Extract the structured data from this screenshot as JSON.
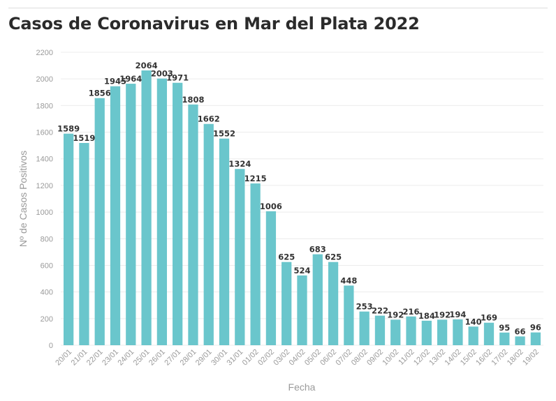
{
  "title": "Casos de Coronavirus en Mar del Plata 2022",
  "colors": {
    "bar": "#6ac6cc",
    "grid": "#ececec",
    "axis_text": "#9a9a9a",
    "label": "#333333"
  },
  "chart_data": {
    "type": "bar",
    "title": "Casos de Coronavirus en Mar del Plata 2022",
    "xlabel": "Fecha",
    "ylabel": "Nº de Casos Positivos",
    "ylim": [
      0,
      2200
    ],
    "yticks": [
      0,
      200,
      400,
      600,
      800,
      1000,
      1200,
      1400,
      1600,
      1800,
      2000,
      2200
    ],
    "grid": true,
    "categories": [
      "20/01",
      "21/01",
      "22/01",
      "23/01",
      "24/01",
      "25/01",
      "26/01",
      "27/01",
      "28/01",
      "29/01",
      "30/01",
      "31/01",
      "01/02",
      "02/02",
      "03/02",
      "04/02",
      "05/02",
      "06/02",
      "07/02",
      "08/02",
      "09/02",
      "10/02",
      "11/02",
      "12/02",
      "13/02",
      "14/02",
      "15/02",
      "16/02",
      "17/02",
      "18/02",
      "19/02"
    ],
    "values": [
      1589,
      1519,
      1856,
      1945,
      1964,
      2064,
      2003,
      1971,
      1808,
      1662,
      1552,
      1324,
      1215,
      1006,
      625,
      524,
      683,
      625,
      448,
      253,
      222,
      192,
      216,
      184,
      192,
      194,
      140,
      169,
      95,
      66,
      96
    ]
  }
}
